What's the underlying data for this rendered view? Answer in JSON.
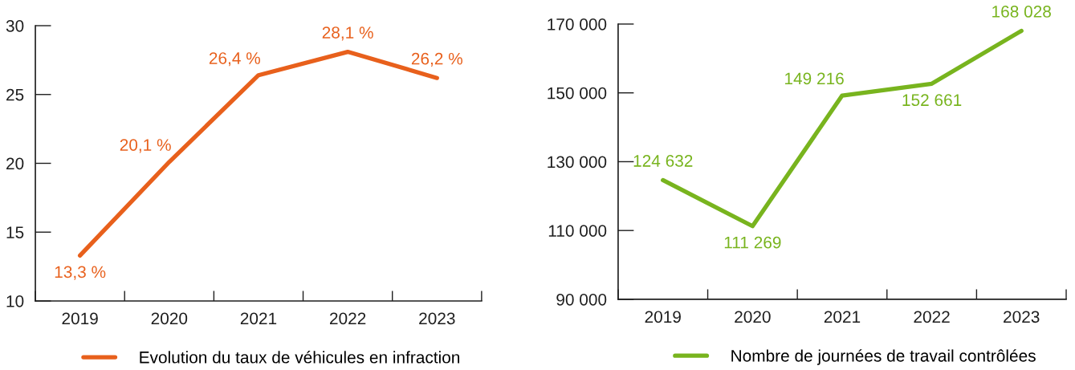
{
  "chart_data": [
    {
      "type": "line",
      "categories": [
        "2019",
        "2020",
        "2021",
        "2022",
        "2023"
      ],
      "ylim": [
        10,
        30
      ],
      "yticks": [
        10,
        15,
        20,
        25,
        30
      ],
      "legend": "bottom",
      "series": [
        {
          "name": "Evolution du taux de véhicules en infraction",
          "color": "#e8601c",
          "values": [
            13.3,
            20.1,
            26.4,
            28.1,
            26.2
          ],
          "value_labels": [
            "13,3 %",
            "20,1 %",
            "26,4 %",
            "28,1 %",
            "26,2 %"
          ]
        }
      ]
    },
    {
      "type": "line",
      "categories": [
        "2019",
        "2020",
        "2021",
        "2022",
        "2023"
      ],
      "ylim": [
        90000,
        170000
      ],
      "yticks": [
        {
          "value": 90000,
          "label": "90 000"
        },
        {
          "value": 110000,
          "label": "110 000"
        },
        {
          "value": 130000,
          "label": "130 000"
        },
        {
          "value": 150000,
          "label": "150 000"
        },
        {
          "value": 170000,
          "label": "170 000"
        }
      ],
      "legend": "bottom",
      "series": [
        {
          "name": "Nombre de journées de travail contrôlées",
          "color": "#78b41e",
          "values": [
            124632,
            111269,
            149216,
            152661,
            168028
          ],
          "value_labels": [
            "124 632",
            "111 269",
            "149 216",
            "152 661",
            "168 028"
          ]
        }
      ]
    }
  ]
}
